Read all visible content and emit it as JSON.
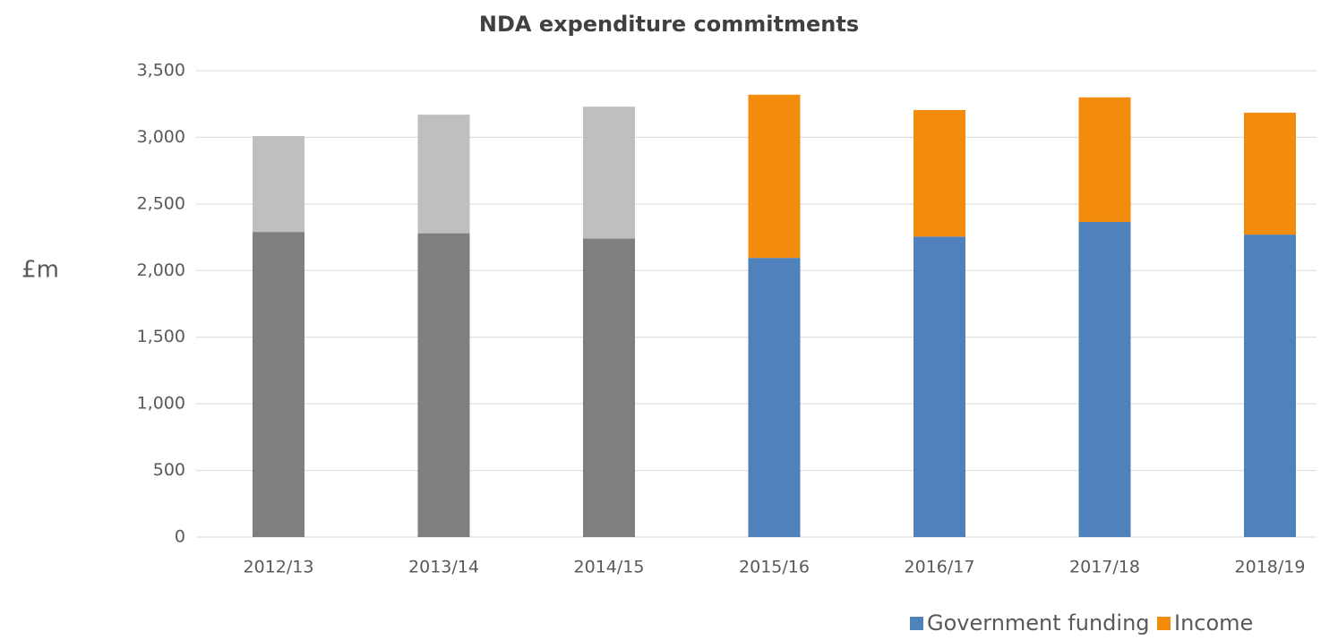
{
  "chart_data": {
    "type": "stacked_bar",
    "title": "NDA expenditure commitments",
    "y_label": "£m",
    "categories": [
      "2012/13",
      "2013/14",
      "2014/15",
      "2015/16",
      "2016/17",
      "2017/18",
      "2018/19"
    ],
    "series": [
      {
        "name": "Government funding",
        "color": "#4f81bd",
        "values": [
          2290,
          2280,
          2240,
          2095,
          2255,
          2365,
          2270
        ],
        "point_colors": [
          "#7f7f7f",
          "#7f7f7f",
          "#7f7f7f",
          "#4f81bd",
          "#4f81bd",
          "#4f81bd",
          "#4f81bd"
        ]
      },
      {
        "name": "Income",
        "color": "#f38b0d",
        "values": [
          720,
          890,
          990,
          1225,
          950,
          935,
          915
        ],
        "point_colors": [
          "#bfbfbf",
          "#bfbfbf",
          "#bfbfbf",
          "#f38b0d",
          "#f38b0d",
          "#f38b0d",
          "#f38b0d"
        ]
      }
    ],
    "ylim": [
      0,
      3500
    ],
    "yticks": [
      0,
      500,
      {
        "value": 1000,
        "label": "1,000"
      },
      {
        "value": 1500,
        "label": "1,500"
      },
      {
        "value": 2000,
        "label": "2,000"
      },
      {
        "value": 2500,
        "label": "2,500"
      },
      {
        "value": 3000,
        "label": "3,000"
      },
      {
        "value": 3500,
        "label": "3,500"
      }
    ],
    "grid": true,
    "legend": "bottom-right"
  }
}
